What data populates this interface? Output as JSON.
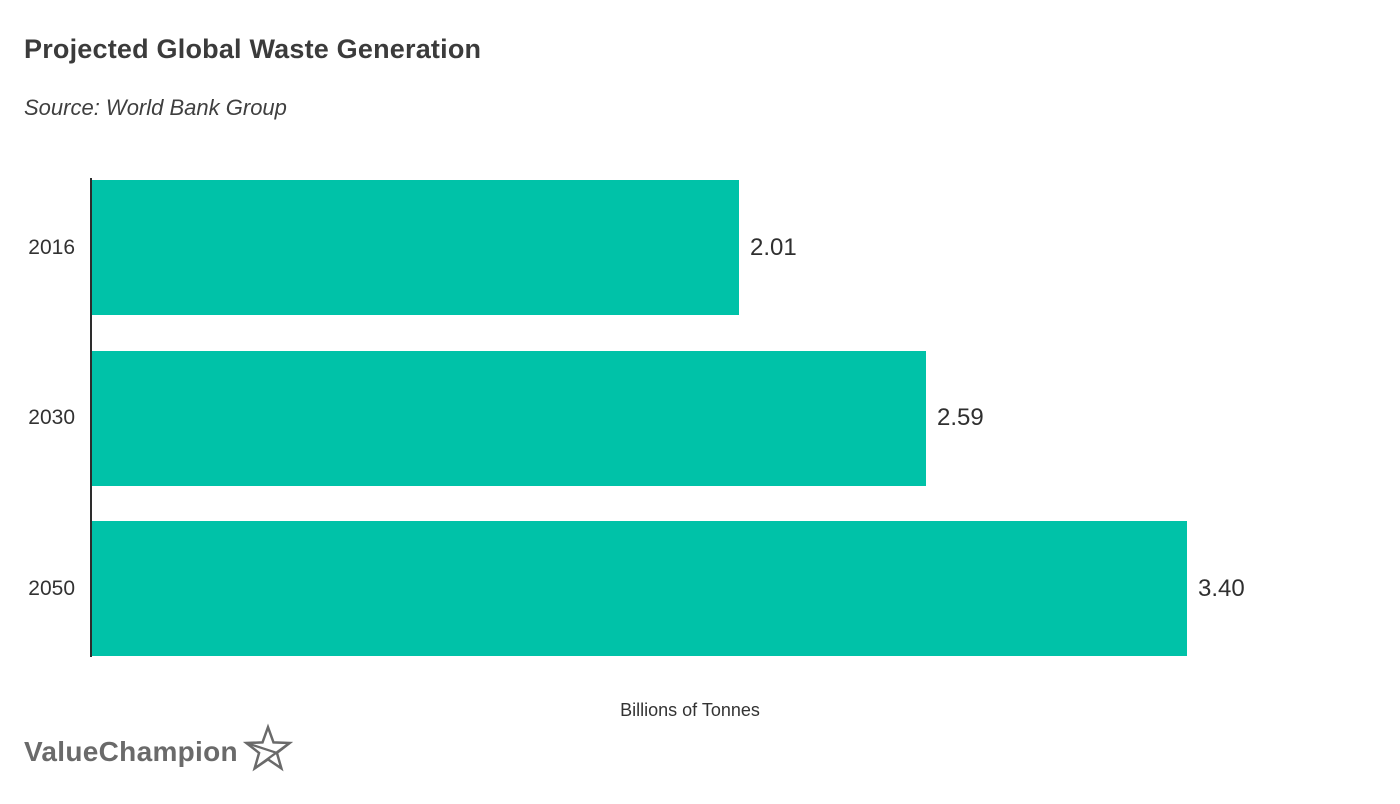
{
  "title": "Projected Global Waste Generation",
  "source": "Source: World Bank Group",
  "xlabel": "Billions of Tonnes",
  "logo": {
    "text": "ValueChampion",
    "icon": "star-icon"
  },
  "colors": {
    "bar": "#00c2a8",
    "axis": "#2d2d2d",
    "title_text": "#3b3b3b",
    "logo_text": "#6a6a6a"
  },
  "chart_data": {
    "type": "bar",
    "orientation": "horizontal",
    "title": "Projected Global Waste Generation",
    "subtitle": "Source: World Bank Group",
    "categories": [
      "2016",
      "2030",
      "2050"
    ],
    "values": [
      2.01,
      2.59,
      3.4
    ],
    "value_labels": [
      "2.01",
      "2.59",
      "3.40"
    ],
    "xlabel": "Billions of Tonnes",
    "ylabel": "",
    "xlim": [
      0,
      3.72
    ],
    "grid": false,
    "legend_position": "none",
    "bar_color": "#00c2a8"
  }
}
